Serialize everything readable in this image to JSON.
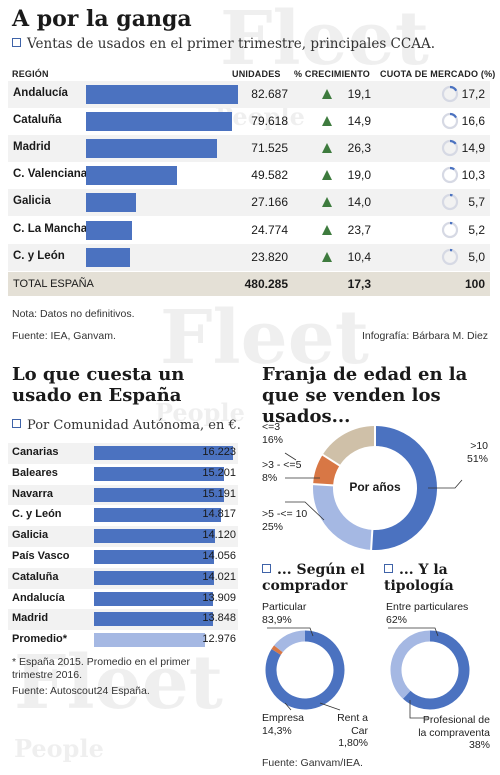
{
  "title": "A por la ganga",
  "t1": {
    "subtitle": "Ventas de usados en el primer trimestre, principales CCAA.",
    "headers": {
      "region": "REGIÓN",
      "units": "UNIDADES",
      "growth": "% CRECIMIENTO",
      "share": "CUOTA DE MERCADO (%)"
    },
    "rows": [
      {
        "region": "Andalucía",
        "units": "82.687",
        "units_value": 82687,
        "growth": "19,1",
        "share": "17,2",
        "share_value": 17.2
      },
      {
        "region": "Cataluña",
        "units": "79.618",
        "units_value": 79618,
        "growth": "14,9",
        "share": "16,6",
        "share_value": 16.6
      },
      {
        "region": "Madrid",
        "units": "71.525",
        "units_value": 71525,
        "growth": "26,3",
        "share": "14,9",
        "share_value": 14.9
      },
      {
        "region": "C. Valenciana",
        "units": "49.582",
        "units_value": 49582,
        "growth": "19,0",
        "share": "10,3",
        "share_value": 10.3
      },
      {
        "region": "Galicia",
        "units": "27.166",
        "units_value": 27166,
        "growth": "14,0",
        "share": "5,7",
        "share_value": 5.7
      },
      {
        "region": "C. La Mancha",
        "units": "24.774",
        "units_value": 24774,
        "growth": "23,7",
        "share": "5,2",
        "share_value": 5.2
      },
      {
        "region": "C. y León",
        "units": "23.820",
        "units_value": 23820,
        "growth": "10,4",
        "share": "5,0",
        "share_value": 5.0
      }
    ],
    "total": {
      "label": "TOTAL ESPAÑA",
      "units": "480.285",
      "growth": "17,3",
      "share": "100"
    },
    "note": "Nota: Datos no definitivos.",
    "source": "Fuente: IEA, Ganvam.",
    "credit": "Infografía: Bárbara M. Diez"
  },
  "t2": {
    "title": "Lo que cuesta un usado en España",
    "subtitle": "Por Comunidad Autónoma, en €.",
    "rows": [
      {
        "label": "Canarias",
        "value": "16.223",
        "v": 16223
      },
      {
        "label": "Baleares",
        "value": "15.201",
        "v": 15201
      },
      {
        "label": "Navarra",
        "value": "15.191",
        "v": 15191
      },
      {
        "label": "C. y León",
        "value": "14.817",
        "v": 14817
      },
      {
        "label": "Galicia",
        "value": "14.120",
        "v": 14120
      },
      {
        "label": "País Vasco",
        "value": "14.056",
        "v": 14056
      },
      {
        "label": "Cataluña",
        "value": "14.021",
        "v": 14021
      },
      {
        "label": "Andalucía",
        "value": "13.909",
        "v": 13909
      },
      {
        "label": "Madrid",
        "value": "13.848",
        "v": 13848
      },
      {
        "label": "Promedio*",
        "value": "12.976",
        "v": 12976,
        "highlight": true
      }
    ],
    "note": "* España 2015. Promedio en el primer trimestre 2016.",
    "source": "Fuente: Autoscout24 España."
  },
  "t3": {
    "title": "Franja de edad en la que se venden los usados...",
    "center": "Por años",
    "segments": [
      {
        "label": ">10",
        "value": "51%",
        "v": 51,
        "color": "#4b72c0"
      },
      {
        "label": ">5 -<= 10",
        "value": "25%",
        "v": 25,
        "color": "#a5b8e3"
      },
      {
        "label": ">3 - <=5",
        "value": "8%",
        "v": 8,
        "color": "#d87745"
      },
      {
        "label": "<=3",
        "value": "16%",
        "v": 16,
        "color": "#cfc0a8"
      }
    ]
  },
  "t4": {
    "title": "... Según el comprador",
    "segments": [
      {
        "label": "Particular",
        "value": "83,9%",
        "v": 83.9,
        "color": "#4b72c0"
      },
      {
        "label": "Rent a Car",
        "value": "1,80%",
        "v": 1.8,
        "color": "#d87745"
      },
      {
        "label": "Empresa",
        "value": "14,3%",
        "v": 14.3,
        "color": "#a5b8e3"
      }
    ]
  },
  "t5": {
    "title": "... Y la tipología",
    "segments": [
      {
        "label": "Entre particulares",
        "value": "62%",
        "v": 62,
        "color": "#4b72c0"
      },
      {
        "label": "Profesional de la compraventa",
        "value": "38%",
        "v": 38,
        "color": "#a5b8e3"
      }
    ],
    "source": "Fuente: Ganvam/IEA."
  },
  "watermark": {
    "word1": "Fleet",
    "word2": "People"
  },
  "colors": {
    "bar": "#4b72c0",
    "bar_light": "#a5b8e3",
    "row_alt": "#f2f2f2",
    "total_bg": "#e4e0d6",
    "arrow": "#3e7b3e"
  },
  "chart_data": [
    {
      "type": "bar",
      "title": "Ventas de usados en el primer trimestre, principales CCAA.",
      "categories": [
        "Andalucía",
        "Cataluña",
        "Madrid",
        "C. Valenciana",
        "Galicia",
        "C. La Mancha",
        "C. y León"
      ],
      "series": [
        {
          "name": "UNIDADES",
          "values": [
            82687,
            79618,
            71525,
            49582,
            27166,
            24774,
            23820
          ]
        },
        {
          "name": "% CRECIMIENTO",
          "values": [
            19.1,
            14.9,
            26.3,
            19.0,
            14.0,
            23.7,
            10.4
          ]
        },
        {
          "name": "CUOTA DE MERCADO (%)",
          "values": [
            17.2,
            16.6,
            14.9,
            10.3,
            5.7,
            5.2,
            5.0
          ]
        }
      ]
    },
    {
      "type": "bar",
      "title": "Lo que cuesta un usado en España",
      "categories": [
        "Canarias",
        "Baleares",
        "Navarra",
        "C. y León",
        "Galicia",
        "País Vasco",
        "Cataluña",
        "Andalucía",
        "Madrid",
        "Promedio*"
      ],
      "values": [
        16223,
        15201,
        15191,
        14817,
        14120,
        14056,
        14021,
        13909,
        13848,
        12976
      ]
    },
    {
      "type": "pie",
      "title": "Franja de edad en la que se venden los usados...",
      "categories": [
        ">10",
        ">5 -<= 10",
        ">3 - <=5",
        "<=3"
      ],
      "values": [
        51,
        25,
        8,
        16
      ]
    },
    {
      "type": "pie",
      "title": "... Según el comprador",
      "categories": [
        "Particular",
        "Rent a Car",
        "Empresa"
      ],
      "values": [
        83.9,
        1.8,
        14.3
      ]
    },
    {
      "type": "pie",
      "title": "... Y la tipología",
      "categories": [
        "Entre particulares",
        "Profesional de la compraventa"
      ],
      "values": [
        62,
        38
      ]
    }
  ]
}
